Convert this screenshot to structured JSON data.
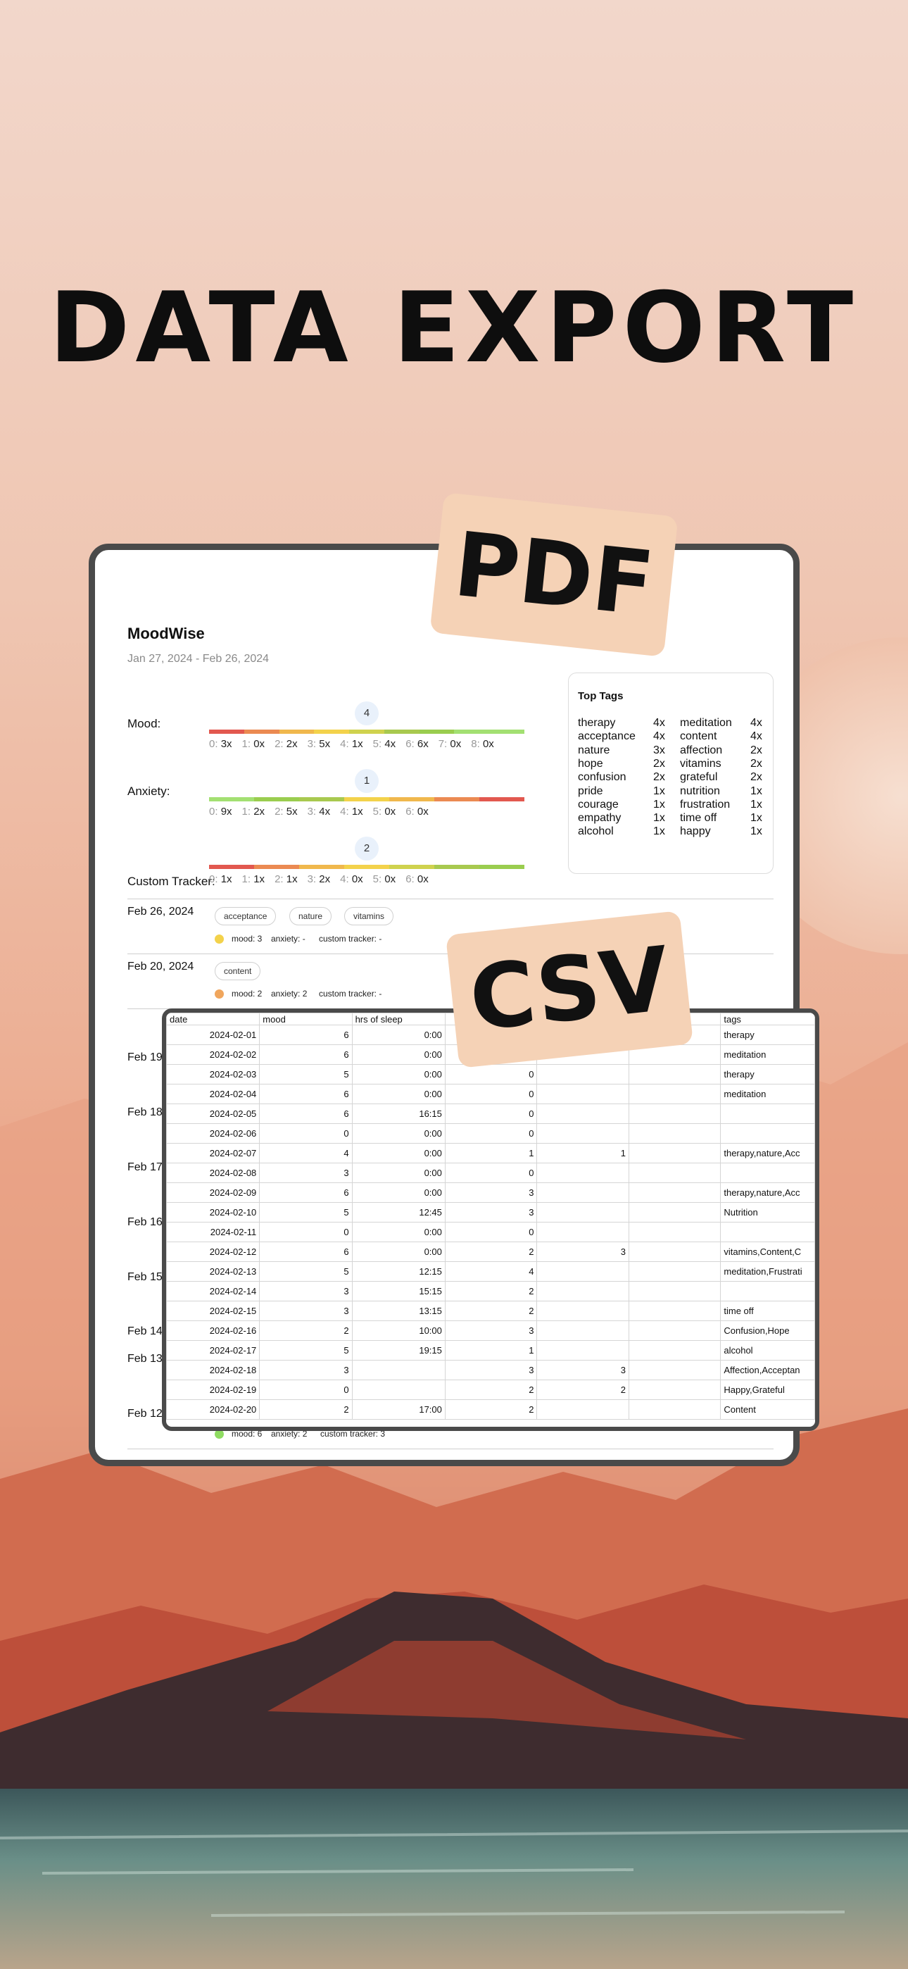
{
  "headline": "DATA EXPORT",
  "stamps": {
    "pdf": "PDF",
    "csv": "CSV"
  },
  "report": {
    "title": "MoodWise",
    "date_range": "Jan 27, 2024 - Feb 26, 2024",
    "trackers": [
      {
        "label": "Mood:",
        "value": "4",
        "value_fraction": 0.5,
        "counts": [
          [
            "0:",
            "3x"
          ],
          [
            "1:",
            "0x"
          ],
          [
            "2:",
            "2x"
          ],
          [
            "3:",
            "5x"
          ],
          [
            "4:",
            "1x"
          ],
          [
            "5:",
            "4x"
          ],
          [
            "6:",
            "6x"
          ],
          [
            "7:",
            "0x"
          ],
          [
            "8:",
            "0x"
          ]
        ],
        "bar_colors": [
          "#e2584f",
          "#eb8a52",
          "#f0b84d",
          "#f3d24b",
          "#cfd24e",
          "#a8c94f",
          "#9acd4f",
          "#a3e072",
          "#a3e072"
        ]
      },
      {
        "label": "Anxiety:",
        "value": "1",
        "value_fraction": 0.5,
        "counts": [
          [
            "0:",
            "9x"
          ],
          [
            "1:",
            "2x"
          ],
          [
            "2:",
            "5x"
          ],
          [
            "3:",
            "4x"
          ],
          [
            "4:",
            "1x"
          ],
          [
            "5:",
            "0x"
          ],
          [
            "6:",
            "0x"
          ]
        ],
        "bar_colors": [
          "#a3e072",
          "#9acd4f",
          "#a8c94f",
          "#f3d24b",
          "#f0b84d",
          "#eb8a52",
          "#e2584f"
        ]
      },
      {
        "label": "Custom Tracker:",
        "value": "2",
        "value_fraction": 0.5,
        "counts": [
          [
            "0:",
            "1x"
          ],
          [
            "1:",
            "1x"
          ],
          [
            "2:",
            "1x"
          ],
          [
            "3:",
            "2x"
          ],
          [
            "4:",
            "0x"
          ],
          [
            "5:",
            "0x"
          ],
          [
            "6:",
            "0x"
          ]
        ],
        "bar_colors": [
          "#e2584f",
          "#eb8a52",
          "#f0b84d",
          "#f3d24b",
          "#cfd24e",
          "#a8c94f",
          "#9acd4f"
        ]
      }
    ],
    "top_tags": {
      "title": "Top Tags",
      "rows": [
        [
          "therapy",
          "4x",
          "meditation",
          "4x"
        ],
        [
          "acceptance",
          "4x",
          "content",
          "4x"
        ],
        [
          "nature",
          "3x",
          "affection",
          "2x"
        ],
        [
          "hope",
          "2x",
          "vitamins",
          "2x"
        ],
        [
          "confusion",
          "2x",
          "grateful",
          "2x"
        ],
        [
          "pride",
          "1x",
          "nutrition",
          "1x"
        ],
        [
          "courage",
          "1x",
          "frustration",
          "1x"
        ],
        [
          "empathy",
          "1x",
          "time off",
          "1x"
        ],
        [
          "alcohol",
          "1x",
          "happy",
          "1x"
        ]
      ]
    },
    "entries": [
      {
        "date": "Feb 26, 2024",
        "chips": [
          "acceptance",
          "nature",
          "vitamins"
        ],
        "mood": "mood: 3",
        "anxiety": "anxiety: -",
        "custom": "custom tracker: -",
        "dot_color": "#f3d24b"
      },
      {
        "date": "Feb 20, 2024",
        "chips": [
          "content"
        ],
        "mood": "mood: 2",
        "anxiety": "anxiety: 2",
        "custom": "custom tracker: -",
        "dot_color": "#f0a65d"
      }
    ],
    "hidden_dates": [
      "Feb 19,",
      "Feb 18,",
      "Feb 17,",
      "Feb 16,",
      "Feb 15,",
      "Feb 14,",
      "Feb 13,",
      "Feb 12,"
    ],
    "last_entry": {
      "mood": "mood: 6",
      "anxiety": "anxiety: 2",
      "custom": "custom tracker: 3",
      "dot_color": "#8fdc62"
    }
  },
  "csv": {
    "headers": [
      "date",
      "mood",
      "hrs of sleep",
      "",
      "",
      "",
      "tags"
    ],
    "rows": [
      [
        "2024-02-01",
        "6",
        "0:00",
        "0",
        "",
        "",
        "therapy"
      ],
      [
        "2024-02-02",
        "6",
        "0:00",
        "0",
        "",
        "",
        "meditation"
      ],
      [
        "2024-02-03",
        "5",
        "0:00",
        "0",
        "",
        "",
        "therapy"
      ],
      [
        "2024-02-04",
        "6",
        "0:00",
        "0",
        "",
        "",
        "meditation"
      ],
      [
        "2024-02-05",
        "6",
        "16:15",
        "0",
        "",
        "",
        ""
      ],
      [
        "2024-02-06",
        "0",
        "0:00",
        "0",
        "",
        "",
        ""
      ],
      [
        "2024-02-07",
        "4",
        "0:00",
        "1",
        "1",
        "",
        "therapy,nature,Acc"
      ],
      [
        "2024-02-08",
        "3",
        "0:00",
        "0",
        "",
        "",
        ""
      ],
      [
        "2024-02-09",
        "6",
        "0:00",
        "3",
        "",
        "",
        "therapy,nature,Acc"
      ],
      [
        "2024-02-10",
        "5",
        "12:45",
        "3",
        "",
        "",
        "Nutrition"
      ],
      [
        "2024-02-11",
        "0",
        "0:00",
        "0",
        "",
        "",
        ""
      ],
      [
        "2024-02-12",
        "6",
        "0:00",
        "2",
        "3",
        "",
        "vitamins,Content,C"
      ],
      [
        "2024-02-13",
        "5",
        "12:15",
        "4",
        "",
        "",
        "meditation,Frustrati"
      ],
      [
        "2024-02-14",
        "3",
        "15:15",
        "2",
        "",
        "",
        ""
      ],
      [
        "2024-02-15",
        "3",
        "13:15",
        "2",
        "",
        "",
        "time off"
      ],
      [
        "2024-02-16",
        "2",
        "10:00",
        "3",
        "",
        "",
        "Confusion,Hope"
      ],
      [
        "2024-02-17",
        "5",
        "19:15",
        "1",
        "",
        "",
        "alcohol"
      ],
      [
        "2024-02-18",
        "3",
        "",
        "3",
        "3",
        "",
        "Affection,Acceptan"
      ],
      [
        "2024-02-19",
        "0",
        "",
        "2",
        "2",
        "",
        "Happy,Grateful"
      ],
      [
        "2024-02-20",
        "2",
        "17:00",
        "2",
        "",
        "",
        "Content"
      ]
    ]
  }
}
